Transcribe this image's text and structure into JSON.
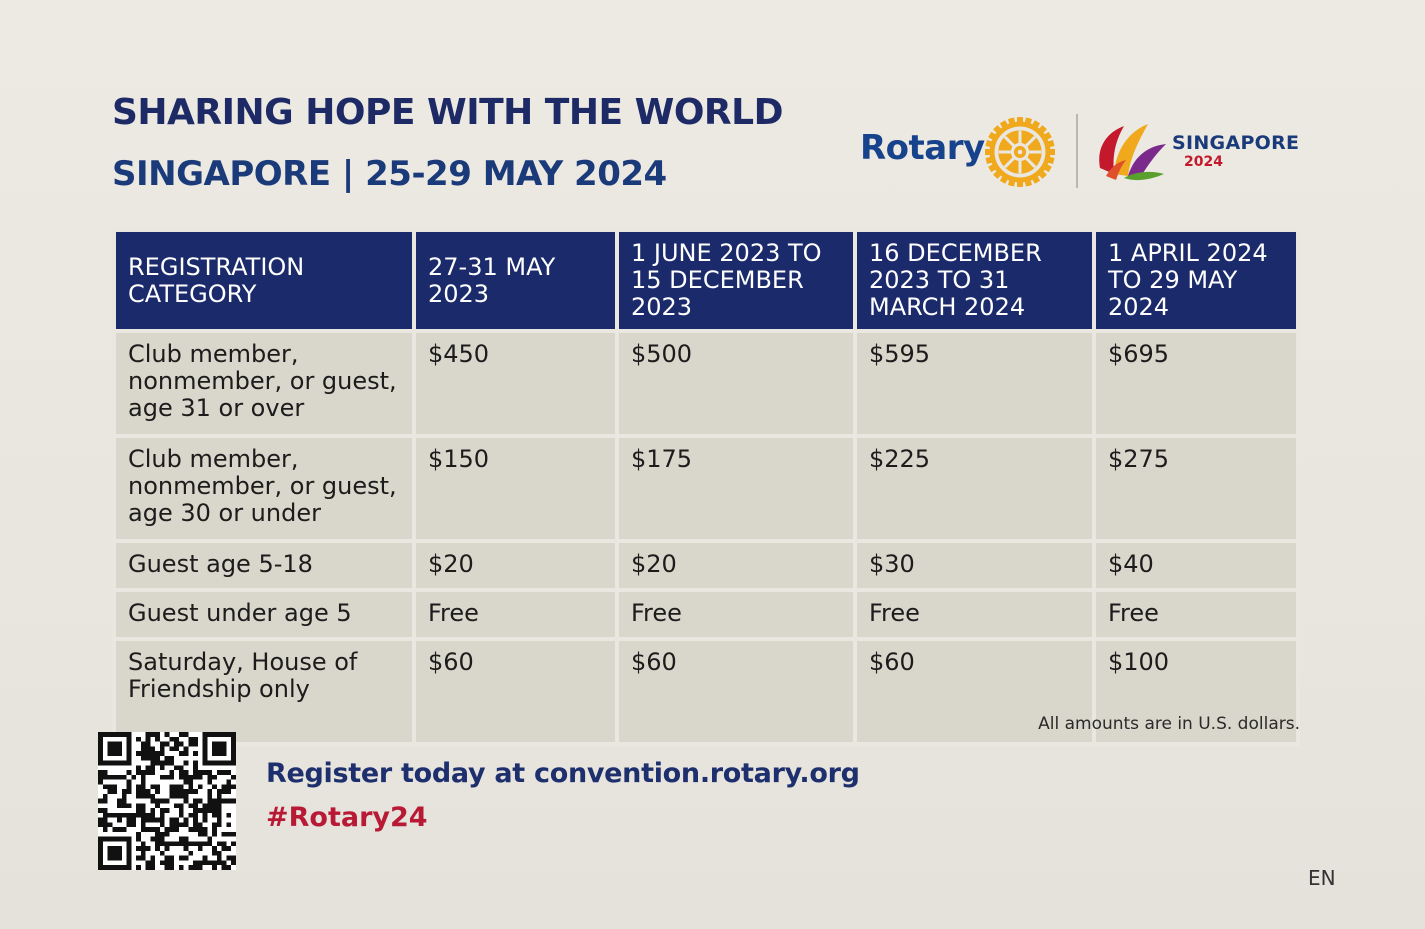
{
  "header": {
    "title": "SHARING HOPE WITH THE WORLD",
    "subtitle": "SINGAPORE | 25-29 MAY 2024"
  },
  "logos": {
    "rotary_wordmark": "Rotary",
    "rotary_icon": "rotary-wheel-icon",
    "convention_icon": "singapore-petals-logo-icon",
    "singapore_word": "SINGAPORE",
    "singapore_year": "2024",
    "colors": {
      "rotary_blue": "#17428c",
      "rotary_gold": "#f0a81c",
      "convention_red": "#c4192c"
    }
  },
  "table": {
    "headers": [
      "REGISTRATION CATEGORY",
      "27-31 MAY 2023",
      "1 JUNE 2023 TO 15 DECEMBER 2023",
      "16 DECEMBER 2023 TO 31 MARCH 2024",
      "1 APRIL 2024 TO 29 MAY 2024"
    ],
    "rows": [
      {
        "category": "Club member, nonmember, or guest, age 31 or over",
        "prices": [
          "$450",
          "$500",
          "$595",
          "$695"
        ]
      },
      {
        "category": "Club member, nonmember, or guest, age 30 or under",
        "prices": [
          "$150",
          "$175",
          "$225",
          "$275"
        ]
      },
      {
        "category": "Guest age 5-18",
        "prices": [
          "$20",
          "$20",
          "$30",
          "$40"
        ]
      },
      {
        "category": "Guest under age 5",
        "prices": [
          "Free",
          "Free",
          "Free",
          "Free"
        ]
      },
      {
        "category": "Saturday, House of Friendship only",
        "prices": [
          "$60",
          "$60",
          "$60",
          "$100"
        ]
      }
    ],
    "colors": {
      "header_bg": "#1b2a6b",
      "cell_bg": "#d9d6cb"
    }
  },
  "note": "All amounts are in U.S. dollars.",
  "footer": {
    "qr_icon": "qr-code-icon",
    "register_text": "Register today at convention.rotary.org",
    "hashtag": "#Rotary24",
    "language_code": "EN"
  }
}
